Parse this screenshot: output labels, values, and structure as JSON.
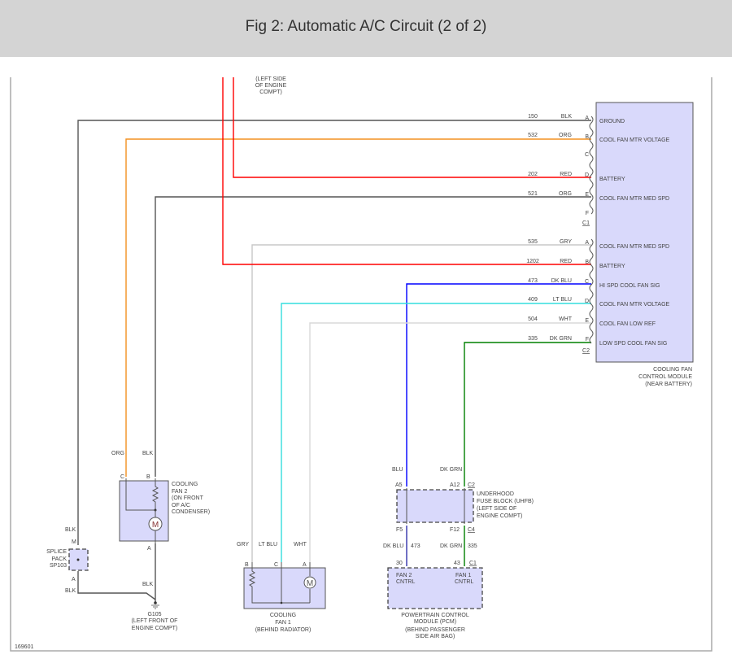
{
  "title": "Fig 2: Automatic A/C Circuit (2 of 2)",
  "figure_id": "169601",
  "top_location": [
    "(LEFT SIDE",
    "OF ENGINE",
    "COMPT)"
  ],
  "colors": {
    "blk": "#555555",
    "org": "#f39020",
    "red": "#ff0000",
    "gry": "#c8c8c8",
    "dk_blu": "#0000ff",
    "lt_blu": "#33dddd",
    "wht": "#d8d8d8",
    "dk_grn": "#008000",
    "box_fill": "#d9d9fb"
  },
  "module": {
    "caption": [
      "COOLING FAN",
      "CONTROL MODULE",
      "(NEAR BATTERY)"
    ],
    "c1": {
      "label": "C1",
      "pins": [
        {
          "pin": "A",
          "circuit": "150",
          "color": "BLK",
          "name": "GROUND"
        },
        {
          "pin": "B",
          "circuit": "532",
          "color": "ORG",
          "name": "COOL FAN MTR VOLTAGE"
        },
        {
          "pin": "C",
          "circuit": "",
          "color": "",
          "name": ""
        },
        {
          "pin": "D",
          "circuit": "202",
          "color": "RED",
          "name": "BATTERY"
        },
        {
          "pin": "E",
          "circuit": "521",
          "color": "ORG",
          "name": "COOL FAN MTR MED SPD"
        },
        {
          "pin": "F",
          "circuit": "",
          "color": "",
          "name": ""
        }
      ]
    },
    "c2": {
      "label": "C2",
      "pins": [
        {
          "pin": "A",
          "circuit": "535",
          "color": "GRY",
          "name": "COOL FAN MTR MED SPD"
        },
        {
          "pin": "B",
          "circuit": "1202",
          "color": "RED",
          "name": "BATTERY"
        },
        {
          "pin": "C",
          "circuit": "473",
          "color": "DK BLU",
          "name": "HI SPD COOL FAN SIG"
        },
        {
          "pin": "D",
          "circuit": "409",
          "color": "LT BLU",
          "name": "COOL FAN MTR VOLTAGE"
        },
        {
          "pin": "E",
          "circuit": "504",
          "color": "WHT",
          "name": "COOL FAN LOW REF"
        },
        {
          "pin": "F",
          "circuit": "335",
          "color": "DK GRN",
          "name": "LOW SPD COOL FAN SIG"
        }
      ]
    }
  },
  "fan2": {
    "caption": [
      "COOLING",
      "FAN 2",
      "(ON FRONT",
      "OF A/C",
      "CONDENSER)"
    ],
    "pin_c": "C",
    "pin_b": "B",
    "pin_a": "A",
    "wire_c": "ORG",
    "wire_b": "BLK",
    "wire_a": "BLK",
    "motor": "M"
  },
  "splice": {
    "caption": [
      "SPLICE",
      "PACK",
      "SP103"
    ],
    "pin_m": "M",
    "pin_a": "A",
    "wire_top": "BLK",
    "wire_bottom": "BLK"
  },
  "ground": {
    "caption": [
      "G105",
      "(LEFT FRONT OF",
      "ENGINE COMPT)"
    ]
  },
  "fan1": {
    "caption": [
      "COOLING",
      "FAN 1",
      "(BEHIND RADIATOR)"
    ],
    "pin_b": "B",
    "pin_c": "C",
    "pin_a": "A",
    "wire_b": "GRY",
    "wire_c": "LT BLU",
    "wire_a": "WHT",
    "motor": "M"
  },
  "uhfb": {
    "caption": [
      "UNDERHOOD",
      "FUSE BLOCK (UHFB)",
      "(LEFT SIDE OF",
      "ENGINE COMPT)"
    ],
    "pin_a5": "A5",
    "pin_a12": "A12",
    "conn_top": "C2",
    "pin_f5": "F5",
    "pin_f12": "F12",
    "conn_bottom": "C4",
    "wire_left_top": "BLU",
    "wire_right_top": "DK GRN",
    "wire_left_bottom": "DK BLU",
    "circuit_left": "473",
    "wire_right_bottom": "DK GRN",
    "circuit_right": "335"
  },
  "pcm": {
    "caption": [
      "POWERTRAIN CONTROL",
      "MODULE (PCM)",
      "(BEHIND PASSENGER",
      "SIDE AIR BAG)"
    ],
    "pin_30": "30",
    "pin_43": "43",
    "conn": "C1",
    "fan2_label": [
      "FAN 2",
      "CNTRL"
    ],
    "fan1_label": [
      "FAN 1",
      "CNTRL"
    ]
  }
}
